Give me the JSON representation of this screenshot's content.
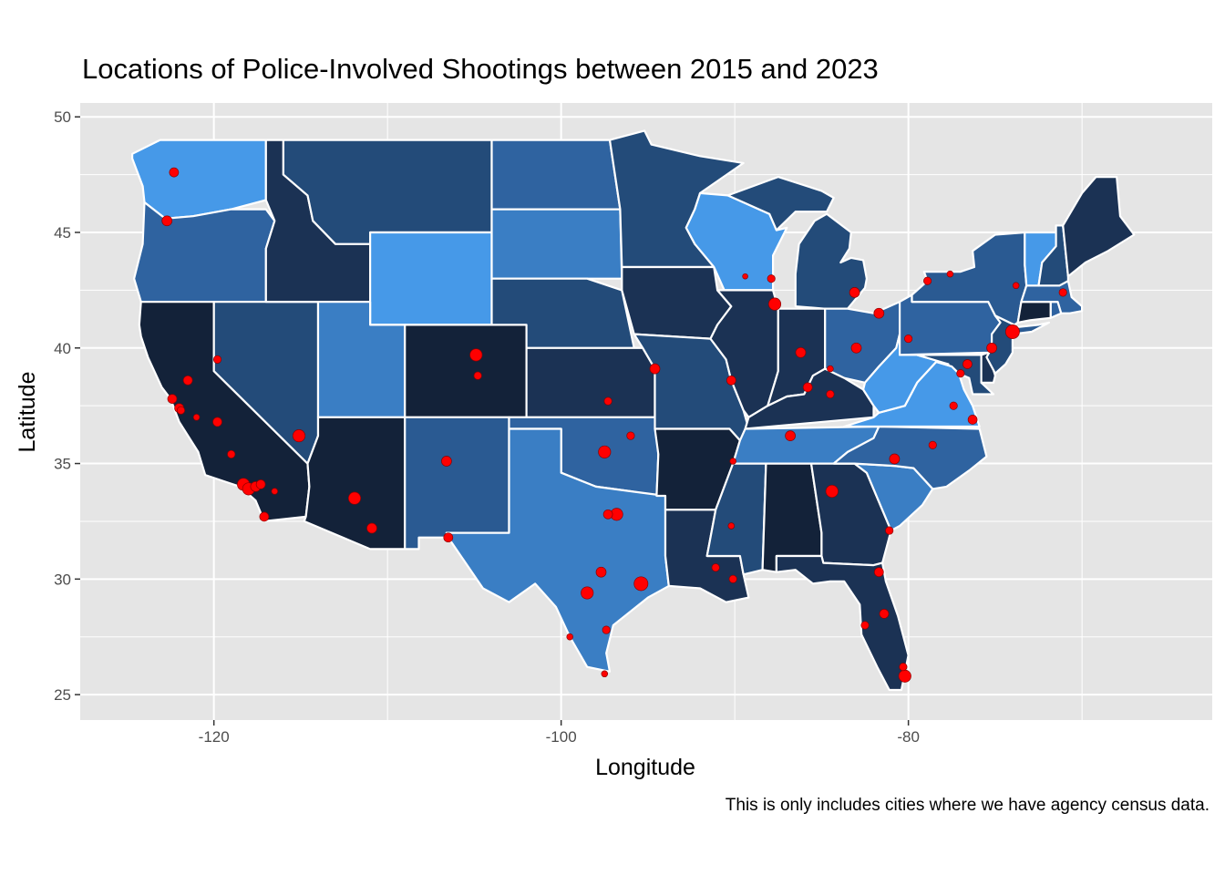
{
  "chart_data": {
    "type": "map",
    "title": "Locations of Police-Involved Shootings between 2015 and 2023",
    "xlabel": "Longitude",
    "ylabel": "Latitude",
    "caption": "This is only includes cities where we have agency census data.",
    "x_ticks": [
      -120,
      -100,
      -80
    ],
    "y_ticks": [
      25,
      30,
      35,
      40,
      45,
      50
    ],
    "xlim": [
      -127.7,
      -62.5
    ],
    "ylim": [
      23.9,
      50.6
    ],
    "grid": true,
    "legend": "none",
    "colors": {
      "panel": "#e5e5e5",
      "grid": "#ffffff",
      "state_border": "#ffffff",
      "point": "#ff0000",
      "darkest": "#132239",
      "dark": "#1b3254",
      "mid_dark": "#234b79",
      "mid": "#2f63a0",
      "light": "#3a7ec4",
      "lightest": "#4699e8"
    },
    "states": [
      {
        "name": "Washington",
        "fill": "#4699e8"
      },
      {
        "name": "Oregon",
        "fill": "#2f63a0"
      },
      {
        "name": "California",
        "fill": "#132239"
      },
      {
        "name": "Nevada",
        "fill": "#234b79"
      },
      {
        "name": "Idaho",
        "fill": "#1b3254"
      },
      {
        "name": "Montana",
        "fill": "#234b79"
      },
      {
        "name": "Wyoming",
        "fill": "#4699e8"
      },
      {
        "name": "Utah",
        "fill": "#3a7ec4"
      },
      {
        "name": "Colorado",
        "fill": "#132239"
      },
      {
        "name": "Arizona",
        "fill": "#132239"
      },
      {
        "name": "New Mexico",
        "fill": "#2a5a92"
      },
      {
        "name": "North Dakota",
        "fill": "#2f63a0"
      },
      {
        "name": "South Dakota",
        "fill": "#3a7ec4"
      },
      {
        "name": "Nebraska",
        "fill": "#234b79"
      },
      {
        "name": "Kansas",
        "fill": "#1b3254"
      },
      {
        "name": "Oklahoma",
        "fill": "#2f63a0"
      },
      {
        "name": "Texas",
        "fill": "#3a7ec4"
      },
      {
        "name": "Minnesota",
        "fill": "#234b79"
      },
      {
        "name": "Iowa",
        "fill": "#1b3254"
      },
      {
        "name": "Missouri",
        "fill": "#234b79"
      },
      {
        "name": "Arkansas",
        "fill": "#132239"
      },
      {
        "name": "Louisiana",
        "fill": "#1b3254"
      },
      {
        "name": "Wisconsin",
        "fill": "#4699e8"
      },
      {
        "name": "Illinois",
        "fill": "#1b3254"
      },
      {
        "name": "Michigan",
        "fill": "#234b79"
      },
      {
        "name": "Indiana",
        "fill": "#1b3254"
      },
      {
        "name": "Ohio",
        "fill": "#2f63a0"
      },
      {
        "name": "Kentucky",
        "fill": "#1b3254"
      },
      {
        "name": "Tennessee",
        "fill": "#3a7ec4"
      },
      {
        "name": "Mississippi",
        "fill": "#234b79"
      },
      {
        "name": "Alabama",
        "fill": "#132239"
      },
      {
        "name": "Georgia",
        "fill": "#1b3254"
      },
      {
        "name": "Florida",
        "fill": "#1b3254"
      },
      {
        "name": "South Carolina",
        "fill": "#3a7ec4"
      },
      {
        "name": "North Carolina",
        "fill": "#2f63a0"
      },
      {
        "name": "Virginia",
        "fill": "#4699e8"
      },
      {
        "name": "West Virginia",
        "fill": "#4699e8"
      },
      {
        "name": "Maryland",
        "fill": "#234b79"
      },
      {
        "name": "Delaware",
        "fill": "#1b3254"
      },
      {
        "name": "Pennsylvania",
        "fill": "#2f63a0"
      },
      {
        "name": "New Jersey",
        "fill": "#234b79"
      },
      {
        "name": "New York",
        "fill": "#2a5a92"
      },
      {
        "name": "Connecticut",
        "fill": "#132239"
      },
      {
        "name": "Rhode Island",
        "fill": "#2f63a0"
      },
      {
        "name": "Massachusetts",
        "fill": "#2f63a0"
      },
      {
        "name": "Vermont",
        "fill": "#4699e8"
      },
      {
        "name": "New Hampshire",
        "fill": "#234b79"
      },
      {
        "name": "Maine",
        "fill": "#1b3254"
      }
    ],
    "points": [
      [
        -122.3,
        47.6,
        1.2
      ],
      [
        -122.7,
        45.5,
        1.3
      ],
      [
        -122.4,
        37.8,
        1.2
      ],
      [
        -122.0,
        37.4,
        1.2
      ],
      [
        -121.9,
        37.3,
        1.0
      ],
      [
        -121.5,
        38.6,
        1.2
      ],
      [
        -119.8,
        39.5,
        1.0
      ],
      [
        -121.0,
        37.0,
        0.8
      ],
      [
        -119.8,
        36.8,
        1.2
      ],
      [
        -119.0,
        35.4,
        1.0
      ],
      [
        -118.3,
        34.1,
        1.6
      ],
      [
        -118.0,
        33.9,
        1.6
      ],
      [
        -117.6,
        34.0,
        1.3
      ],
      [
        -117.3,
        34.1,
        1.2
      ],
      [
        -116.5,
        33.8,
        0.8
      ],
      [
        -117.1,
        32.7,
        1.2
      ],
      [
        -115.1,
        36.2,
        1.6
      ],
      [
        -111.9,
        33.5,
        1.6
      ],
      [
        -110.9,
        32.2,
        1.3
      ],
      [
        -106.6,
        35.1,
        1.3
      ],
      [
        -106.5,
        31.8,
        1.2
      ],
      [
        -104.9,
        39.7,
        1.6
      ],
      [
        -104.8,
        38.8,
        1.0
      ],
      [
        -97.3,
        37.7,
        1.0
      ],
      [
        -97.5,
        35.5,
        1.6
      ],
      [
        -96.0,
        36.2,
        1.0
      ],
      [
        -96.8,
        32.8,
        1.6
      ],
      [
        -97.3,
        32.8,
        1.2
      ],
      [
        -97.7,
        30.3,
        1.3
      ],
      [
        -98.5,
        29.4,
        1.6
      ],
      [
        -95.4,
        29.8,
        1.8
      ],
      [
        -97.4,
        27.8,
        1.0
      ],
      [
        -99.5,
        27.5,
        0.8
      ],
      [
        -97.5,
        25.9,
        0.8
      ],
      [
        -94.6,
        39.1,
        1.3
      ],
      [
        -90.2,
        38.6,
        1.2
      ],
      [
        -90.1,
        35.1,
        0.8
      ],
      [
        -90.1,
        30.0,
        1.0
      ],
      [
        -91.1,
        30.5,
        1.0
      ],
      [
        -90.2,
        32.3,
        0.8
      ],
      [
        -87.7,
        41.9,
        1.6
      ],
      [
        -87.9,
        43.0,
        1.0
      ],
      [
        -89.4,
        43.1,
        0.7
      ],
      [
        -86.2,
        39.8,
        1.3
      ],
      [
        -85.8,
        38.3,
        1.2
      ],
      [
        -84.5,
        38.0,
        1.0
      ],
      [
        -84.5,
        39.1,
        0.8
      ],
      [
        -86.8,
        36.2,
        1.3
      ],
      [
        -84.4,
        33.8,
        1.6
      ],
      [
        -81.1,
        32.1,
        1.0
      ],
      [
        -81.7,
        30.3,
        1.2
      ],
      [
        -81.4,
        28.5,
        1.2
      ],
      [
        -82.5,
        28.0,
        1.0
      ],
      [
        -80.2,
        25.8,
        1.6
      ],
      [
        -80.3,
        26.2,
        1.0
      ],
      [
        -83.0,
        40.0,
        1.3
      ],
      [
        -81.7,
        41.5,
        1.3
      ],
      [
        -83.1,
        42.4,
        1.3
      ],
      [
        -80.0,
        40.4,
        1.0
      ],
      [
        -75.2,
        40.0,
        1.3
      ],
      [
        -74.0,
        40.7,
        1.8
      ],
      [
        -76.6,
        39.3,
        1.2
      ],
      [
        -77.0,
        38.9,
        1.0
      ],
      [
        -77.4,
        37.5,
        1.0
      ],
      [
        -76.3,
        36.9,
        1.2
      ],
      [
        -80.8,
        35.2,
        1.3
      ],
      [
        -78.6,
        35.8,
        1.0
      ],
      [
        -78.9,
        42.9,
        1.0
      ],
      [
        -77.6,
        43.2,
        0.8
      ],
      [
        -71.1,
        42.4,
        1.0
      ],
      [
        -73.8,
        42.7,
        0.8
      ]
    ]
  }
}
